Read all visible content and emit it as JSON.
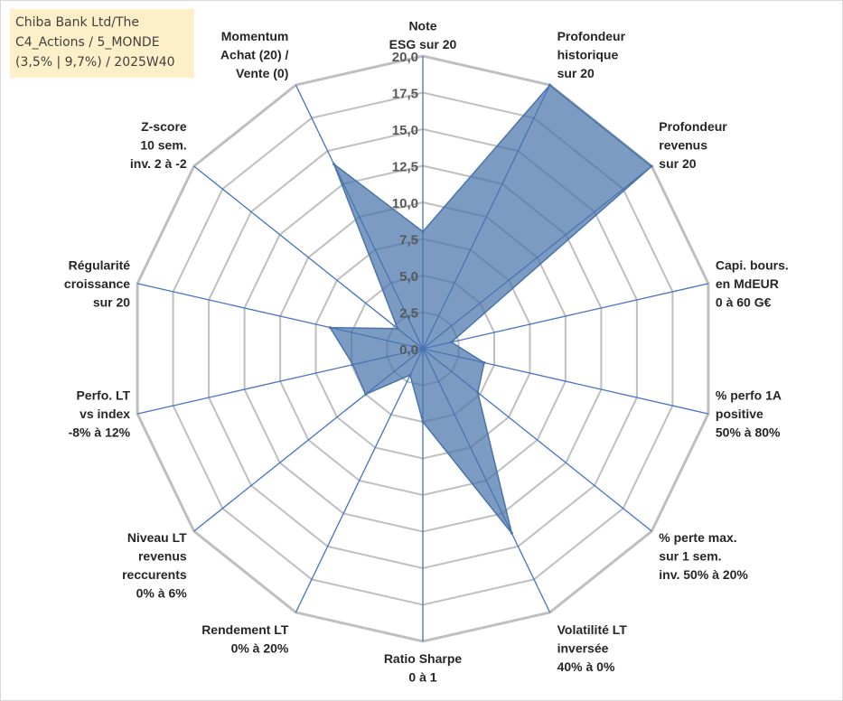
{
  "title_box": {
    "lines": [
      "Chiba Bank Ltd/The",
      "C4_Actions / 5_MONDE",
      "(3,5% | 9,7%) / 2025W40"
    ]
  },
  "chart_data": {
    "type": "radar",
    "title": "",
    "rmin": 0,
    "rmax": 20,
    "rticks": [
      "0,0",
      "2,5",
      "5,0",
      "7,5",
      "10,0",
      "12,5",
      "15,0",
      "17,5",
      "20,0"
    ],
    "axes": [
      [
        "Note",
        "ESG sur 20"
      ],
      [
        "Profondeur",
        "historique",
        "sur 20"
      ],
      [
        "Profondeur",
        "revenus",
        "sur 20"
      ],
      [
        "Capi. bours.",
        "en MdEUR",
        "0 à 60 G€"
      ],
      [
        "% perfo 1A",
        "positive",
        "50% à 80%"
      ],
      [
        "% perte max.",
        "sur 1 sem.",
        "inv. 50% à 20%"
      ],
      [
        "Volatilité LT",
        "inversée",
        "40% à 0%"
      ],
      [
        "Ratio Sharpe",
        "0 à 1"
      ],
      [
        "Rendement LT",
        "0% à 20%"
      ],
      [
        "Niveau LT",
        "revenus",
        "reccurents",
        "0% à 6%"
      ],
      [
        "Perfo. LT",
        "vs index",
        "-8% à 12%"
      ],
      [
        "Régularité",
        "croissance",
        "sur 20"
      ],
      [
        "Z-score",
        "10 sem.",
        "inv. 2 à -2"
      ],
      [
        "Momentum",
        "Achat (20) /",
        "Vente (0)"
      ]
    ],
    "series": [
      {
        "values": [
          8.0,
          20.0,
          20.0,
          2.0,
          4.3,
          4.8,
          14.0,
          5.0,
          2.0,
          5.0,
          4.9,
          6.5,
          2.2,
          14.0
        ]
      }
    ],
    "grid": true,
    "legend": "none",
    "colors": {
      "fill": "#4a74aa",
      "stroke": "#4a74aa",
      "grid": "#bfbfbf",
      "spoke": "#4472c4"
    }
  }
}
